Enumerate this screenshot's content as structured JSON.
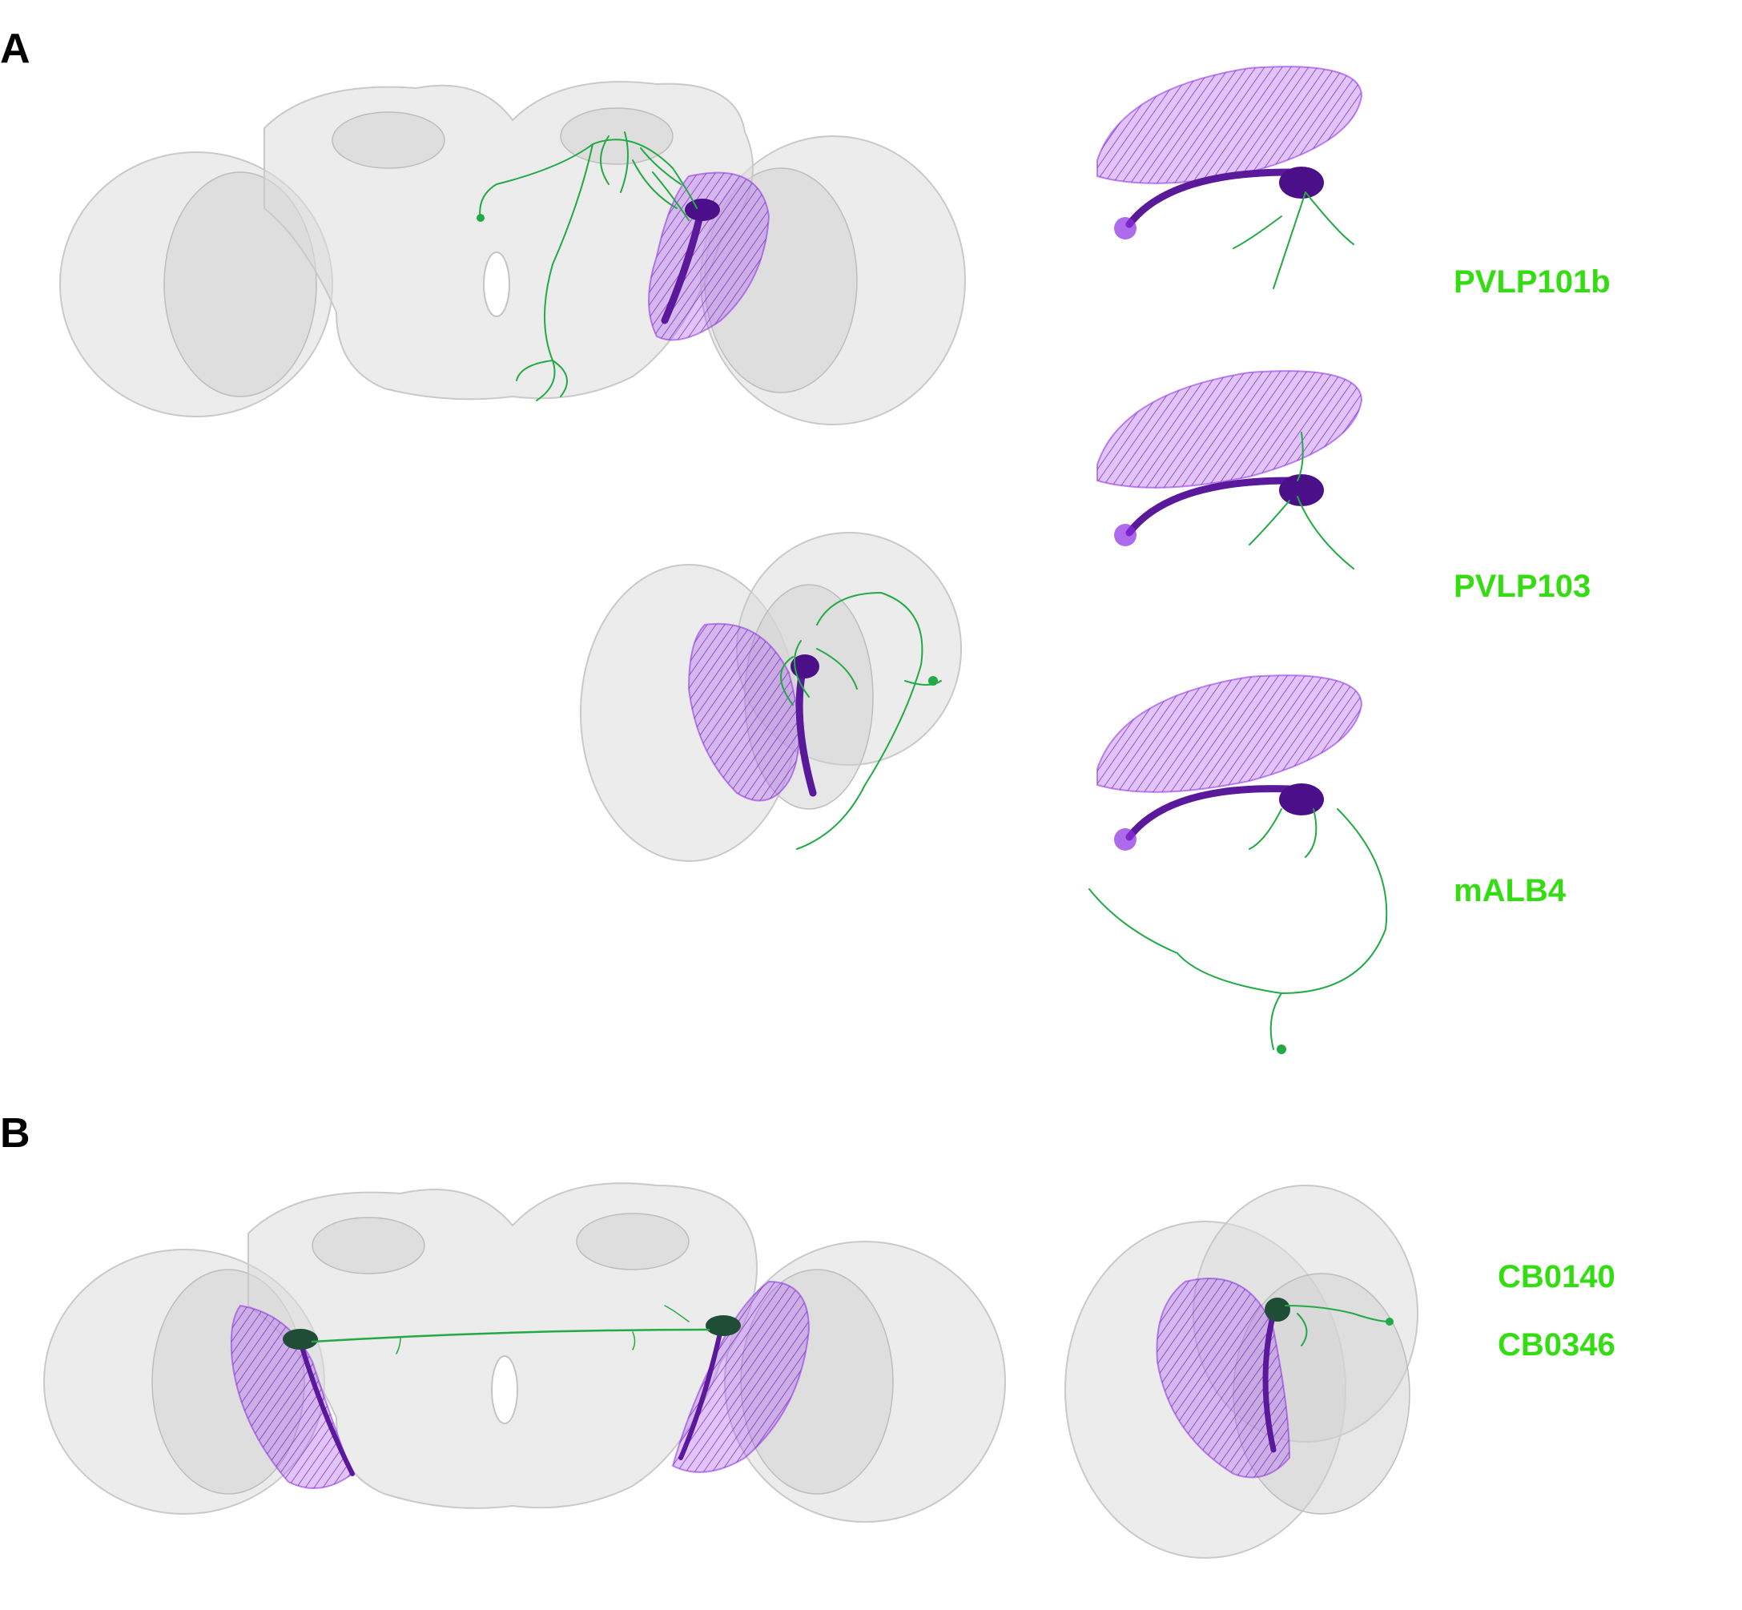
{
  "panels": [
    {
      "letter": "A"
    },
    {
      "letter": "B"
    }
  ],
  "labels": {
    "panel_a": [
      "PVLP101b",
      "PVLP103",
      "mALB4"
    ],
    "panel_b": [
      "CB0140",
      "CB0346"
    ]
  },
  "colors": {
    "label_green": "#33dd11",
    "neuron_green": "#22aa44",
    "purple_arbor": "#8a2be2",
    "purple_dark": "#5a189a",
    "brain_gray": "#dcdcdc",
    "background": "#ffffff"
  }
}
